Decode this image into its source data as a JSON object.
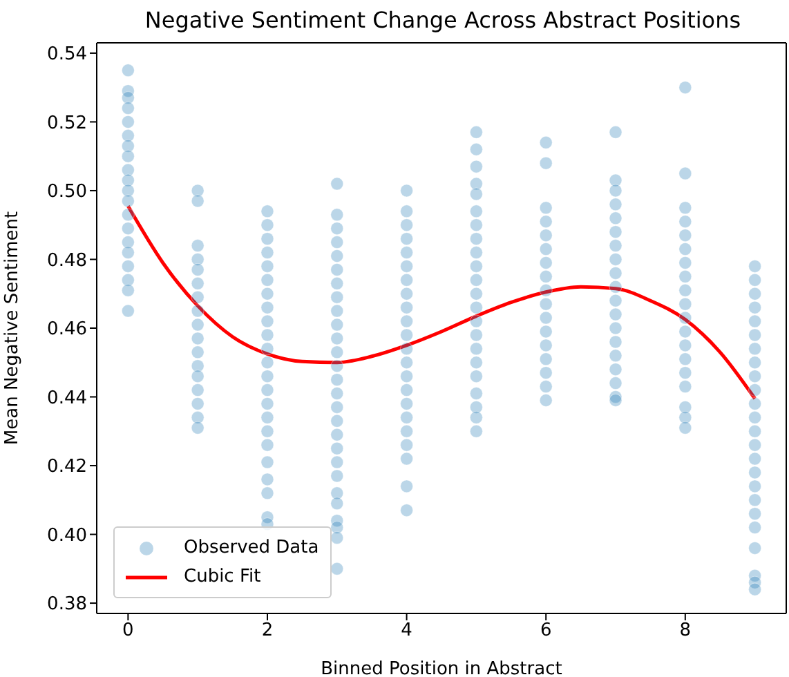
{
  "chart_data": {
    "type": "scatter",
    "title": "Negative Sentiment Change Across Abstract Positions",
    "xlabel": "Binned Position in Abstract",
    "ylabel": "Mean Negative Sentiment",
    "xlim": [
      -0.45,
      9.45
    ],
    "xticks": [
      0,
      2,
      4,
      6,
      8
    ],
    "ylim": [
      0.377,
      0.543
    ],
    "yticks": [
      {
        "value": 0.38,
        "label": "0.38"
      },
      {
        "value": 0.4,
        "label": "0.40"
      },
      {
        "value": 0.42,
        "label": "0.42"
      },
      {
        "value": 0.44,
        "label": "0.44"
      },
      {
        "value": 0.46,
        "label": "0.46"
      },
      {
        "value": 0.48,
        "label": "0.48"
      },
      {
        "value": 0.5,
        "label": "0.50"
      },
      {
        "value": 0.52,
        "label": "0.52"
      },
      {
        "value": 0.54,
        "label": "0.54"
      }
    ],
    "grid": false,
    "legend": "bottom left",
    "marker": "circle",
    "series": [
      {
        "name": "Observed Data",
        "color": "#1f77b4",
        "x": [
          0,
          0,
          0,
          0,
          0,
          0,
          0,
          0,
          0,
          0,
          0,
          0,
          0,
          0,
          0,
          0,
          0,
          0,
          0,
          0,
          1,
          1,
          1,
          1,
          1,
          1,
          1,
          1,
          1,
          1,
          1,
          1,
          1,
          1,
          1,
          1,
          1,
          2,
          2,
          2,
          2,
          2,
          2,
          2,
          2,
          2,
          2,
          2,
          2,
          2,
          2,
          2,
          2,
          2,
          2,
          2,
          2,
          2,
          2,
          2,
          3,
          3,
          3,
          3,
          3,
          3,
          3,
          3,
          3,
          3,
          3,
          3,
          3,
          3,
          3,
          3,
          3,
          3,
          3,
          3,
          3,
          3,
          3,
          3,
          3,
          3,
          3,
          4,
          4,
          4,
          4,
          4,
          4,
          4,
          4,
          4,
          4,
          4,
          4,
          4,
          4,
          4,
          4,
          4,
          4,
          4,
          4,
          4,
          4,
          5,
          5,
          5,
          5,
          5,
          5,
          5,
          5,
          5,
          5,
          5,
          5,
          5,
          5,
          5,
          5,
          5,
          5,
          5,
          5,
          5,
          5,
          6,
          6,
          6,
          6,
          6,
          6,
          6,
          6,
          6,
          6,
          6,
          6,
          6,
          6,
          6,
          6,
          6,
          7,
          7,
          7,
          7,
          7,
          7,
          7,
          7,
          7,
          7,
          7,
          7,
          7,
          7,
          7,
          7,
          7,
          7,
          7,
          8,
          8,
          8,
          8,
          8,
          8,
          8,
          8,
          8,
          8,
          8,
          8,
          8,
          8,
          8,
          8,
          8,
          8,
          8,
          9,
          9,
          9,
          9,
          9,
          9,
          9,
          9,
          9,
          9,
          9,
          9,
          9,
          9,
          9,
          9,
          9,
          9,
          9,
          9,
          9,
          9,
          9,
          9
        ],
        "values": [
          0.535,
          0.529,
          0.527,
          0.524,
          0.52,
          0.516,
          0.513,
          0.51,
          0.506,
          0.503,
          0.5,
          0.497,
          0.493,
          0.489,
          0.485,
          0.482,
          0.478,
          0.474,
          0.471,
          0.465,
          0.5,
          0.497,
          0.484,
          0.48,
          0.477,
          0.473,
          0.469,
          0.465,
          0.461,
          0.457,
          0.453,
          0.449,
          0.446,
          0.442,
          0.438,
          0.434,
          0.431,
          0.494,
          0.49,
          0.486,
          0.482,
          0.478,
          0.474,
          0.47,
          0.466,
          0.462,
          0.458,
          0.454,
          0.45,
          0.446,
          0.442,
          0.438,
          0.434,
          0.43,
          0.426,
          0.421,
          0.416,
          0.412,
          0.405,
          0.403,
          0.502,
          0.493,
          0.489,
          0.485,
          0.481,
          0.477,
          0.473,
          0.469,
          0.465,
          0.461,
          0.457,
          0.453,
          0.449,
          0.445,
          0.441,
          0.437,
          0.433,
          0.429,
          0.425,
          0.421,
          0.417,
          0.412,
          0.409,
          0.404,
          0.402,
          0.399,
          0.39,
          0.5,
          0.494,
          0.49,
          0.486,
          0.482,
          0.478,
          0.474,
          0.47,
          0.466,
          0.462,
          0.458,
          0.454,
          0.45,
          0.446,
          0.442,
          0.438,
          0.434,
          0.43,
          0.426,
          0.422,
          0.414,
          0.407,
          0.517,
          0.512,
          0.507,
          0.502,
          0.499,
          0.494,
          0.49,
          0.486,
          0.482,
          0.478,
          0.474,
          0.47,
          0.466,
          0.462,
          0.458,
          0.454,
          0.45,
          0.446,
          0.441,
          0.437,
          0.434,
          0.43,
          0.514,
          0.508,
          0.495,
          0.491,
          0.487,
          0.483,
          0.479,
          0.475,
          0.471,
          0.467,
          0.463,
          0.459,
          0.455,
          0.451,
          0.447,
          0.443,
          0.439,
          0.517,
          0.503,
          0.5,
          0.496,
          0.492,
          0.488,
          0.484,
          0.48,
          0.476,
          0.472,
          0.468,
          0.464,
          0.46,
          0.456,
          0.452,
          0.448,
          0.444,
          0.44,
          0.439,
          0.53,
          0.505,
          0.495,
          0.491,
          0.487,
          0.483,
          0.479,
          0.475,
          0.471,
          0.467,
          0.463,
          0.459,
          0.455,
          0.451,
          0.447,
          0.443,
          0.437,
          0.434,
          0.431,
          0.478,
          0.474,
          0.47,
          0.466,
          0.462,
          0.458,
          0.454,
          0.45,
          0.446,
          0.442,
          0.438,
          0.434,
          0.43,
          0.426,
          0.422,
          0.418,
          0.414,
          0.41,
          0.406,
          0.402,
          0.396,
          0.388,
          0.386,
          0.384
        ]
      },
      {
        "name": "Cubic Fit",
        "type": "line",
        "color": "#ff0000",
        "marker": "none",
        "line_style": "solid",
        "x": [
          0,
          0.5,
          1,
          1.5,
          2,
          2.5,
          3,
          3.5,
          4,
          4.5,
          5,
          5.5,
          6,
          6.5,
          7,
          7.5,
          8,
          8.5,
          9
        ],
        "values": [
          0.4955,
          0.479,
          0.4665,
          0.4575,
          0.4525,
          0.4503,
          0.45,
          0.4518,
          0.455,
          0.459,
          0.4635,
          0.4675,
          0.4705,
          0.472,
          0.4715,
          0.468,
          0.4625,
          0.453,
          0.4395
        ]
      }
    ]
  }
}
